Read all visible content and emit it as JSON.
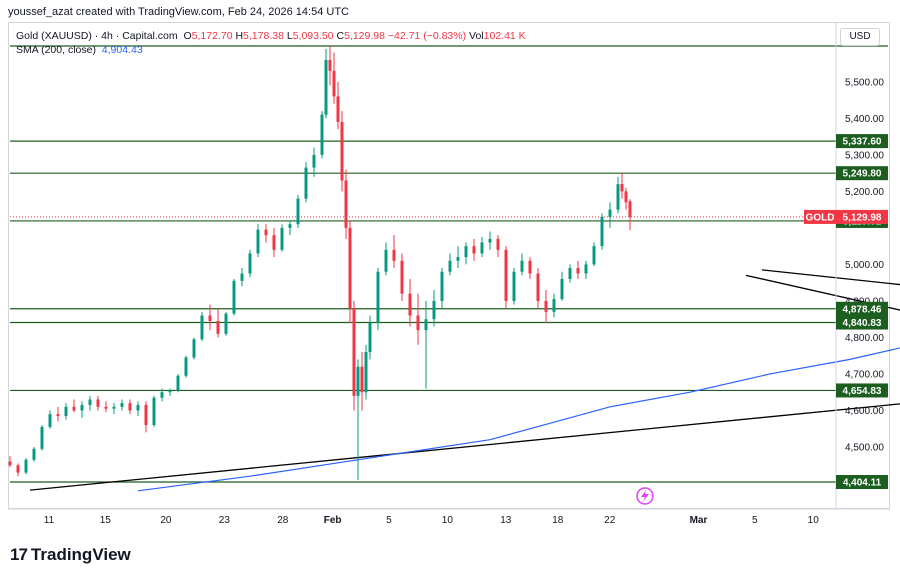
{
  "header": {
    "credit": "youssef_azat created with TradingView.com, Feb 24, 2026 14:54 UTC"
  },
  "legend": {
    "symbol": "Gold (XAUUSD) · 4h · Capital.com",
    "o_label": "O",
    "o_value": "5,172.70",
    "h_label": "H",
    "h_value": "5,178.38",
    "l_label": "L",
    "l_value": "5,093.50",
    "c_label": "C",
    "c_value": "5,129.98",
    "change": "−42.71 (−0.83%)",
    "vol_label": "Vol",
    "vol_value": "102.41 K",
    "sma_label": "SMA (200, close)",
    "sma_value": "4,904.43"
  },
  "currency_button": "USD",
  "brand": {
    "mark": "17",
    "name": "TradingView"
  },
  "colors": {
    "up": "#089981",
    "down": "#f23645",
    "sma": "#2962ff",
    "level": "#1b5e20",
    "trend": "#000000"
  },
  "chart_data": {
    "type": "candlestick",
    "y_axis": {
      "range": [
        4380,
        5600
      ],
      "ticks": [
        4500,
        4600,
        4700,
        4800,
        4900,
        5000,
        5200,
        5300,
        5400,
        5500
      ],
      "tick_labels": [
        "4,500.00",
        "4,600.00",
        "4,700.00",
        "4,800.00",
        "4,900.00",
        "5,000.00",
        "5,200.00",
        "5,300.00",
        "5,400.00",
        "5,500.00"
      ]
    },
    "x_axis": {
      "tick_labels": [
        "11",
        "15",
        "20",
        "23",
        "28",
        "Feb",
        "5",
        "10",
        "13",
        "18",
        "22",
        "Mar",
        "5",
        "10"
      ],
      "tick_positions": [
        0,
        26,
        54,
        81,
        108,
        131,
        157,
        184,
        211,
        235,
        259,
        300,
        326,
        353
      ]
    },
    "current_price": {
      "label": "GOLD",
      "value": 5129.98,
      "value_text": "5,129.98"
    },
    "levels": [
      {
        "value": 5337.6,
        "text": "5,337.60"
      },
      {
        "value": 5249.8,
        "text": "5,249.80"
      },
      {
        "value": 5119.01,
        "text": "5,119.01"
      },
      {
        "value": 4878.46,
        "text": "4,878.46"
      },
      {
        "value": 4840.83,
        "text": "4,840.83"
      },
      {
        "value": 4654.83,
        "text": "4,654.83"
      },
      {
        "value": 4404.11,
        "text": "4,404.11"
      }
    ],
    "top_level": 5598,
    "sma200": [
      [
        32,
        4380
      ],
      [
        60,
        4420
      ],
      [
        90,
        4470
      ],
      [
        120,
        4520
      ],
      [
        140,
        4580
      ],
      [
        150,
        4610
      ],
      [
        170,
        4650
      ],
      [
        190,
        4700
      ],
      [
        210,
        4740
      ],
      [
        230,
        4790
      ],
      [
        250,
        4850
      ],
      [
        270,
        4900
      ]
    ],
    "trendlines": [
      {
        "from": [
          5,
          4382
        ],
        "to": [
          367,
          4775
        ]
      },
      {
        "from": [
          188,
          4985
        ],
        "to": [
          261,
          4900
        ]
      },
      {
        "from": [
          184,
          4970
        ],
        "to": [
          261,
          4780
        ]
      }
    ],
    "candles": [
      [
        0,
        4460,
        4475,
        4445,
        4450
      ],
      [
        2,
        4450,
        4455,
        4420,
        4430
      ],
      [
        4,
        4430,
        4470,
        4425,
        4465
      ],
      [
        6,
        4465,
        4500,
        4460,
        4495
      ],
      [
        8,
        4495,
        4560,
        4490,
        4555
      ],
      [
        10,
        4555,
        4600,
        4550,
        4590
      ],
      [
        12,
        4590,
        4610,
        4570,
        4585
      ],
      [
        14,
        4585,
        4620,
        4575,
        4610
      ],
      [
        16,
        4610,
        4630,
        4595,
        4600
      ],
      [
        18,
        4600,
        4625,
        4580,
        4615
      ],
      [
        20,
        4615,
        4640,
        4600,
        4630
      ],
      [
        22,
        4630,
        4640,
        4600,
        4610
      ],
      [
        24,
        4610,
        4625,
        4595,
        4605
      ],
      [
        26,
        4605,
        4620,
        4590,
        4610
      ],
      [
        28,
        4610,
        4630,
        4600,
        4620
      ],
      [
        30,
        4620,
        4630,
        4590,
        4600
      ],
      [
        32,
        4600,
        4625,
        4585,
        4615
      ],
      [
        34,
        4615,
        4625,
        4540,
        4560
      ],
      [
        36,
        4560,
        4640,
        4555,
        4635
      ],
      [
        38,
        4635,
        4660,
        4625,
        4650
      ],
      [
        40,
        4650,
        4660,
        4640,
        4655
      ],
      [
        42,
        4655,
        4700,
        4650,
        4695
      ],
      [
        44,
        4695,
        4750,
        4690,
        4745
      ],
      [
        46,
        4745,
        4800,
        4740,
        4795
      ],
      [
        48,
        4795,
        4870,
        4790,
        4860
      ],
      [
        50,
        4860,
        4890,
        4820,
        4845
      ],
      [
        52,
        4845,
        4880,
        4800,
        4810
      ],
      [
        54,
        4810,
        4870,
        4805,
        4865
      ],
      [
        56,
        4865,
        4960,
        4860,
        4955
      ],
      [
        58,
        4955,
        4990,
        4940,
        4975
      ],
      [
        60,
        4975,
        5040,
        4965,
        5030
      ],
      [
        62,
        5030,
        5110,
        5020,
        5095
      ],
      [
        64,
        5095,
        5110,
        5060,
        5080
      ],
      [
        66,
        5080,
        5100,
        5020,
        5040
      ],
      [
        68,
        5040,
        5110,
        5035,
        5100
      ],
      [
        70,
        5100,
        5120,
        5080,
        5110
      ],
      [
        72,
        5110,
        5190,
        5100,
        5180
      ],
      [
        74,
        5180,
        5280,
        5170,
        5265
      ],
      [
        76,
        5265,
        5320,
        5240,
        5300
      ],
      [
        78,
        5300,
        5420,
        5290,
        5410
      ],
      [
        79,
        5410,
        5590,
        5400,
        5560
      ],
      [
        80,
        5560,
        5600,
        5490,
        5530
      ],
      [
        81,
        5530,
        5580,
        5440,
        5460
      ],
      [
        82,
        5460,
        5500,
        5370,
        5390
      ],
      [
        83,
        5390,
        5420,
        5200,
        5230
      ],
      [
        84,
        5230,
        5260,
        5070,
        5100
      ],
      [
        85,
        5100,
        5120,
        4840,
        4880
      ],
      [
        86,
        4880,
        4900,
        4600,
        4640
      ],
      [
        87,
        4640,
        4740,
        4410,
        4720
      ],
      [
        88,
        4720,
        4760,
        4600,
        4650
      ],
      [
        89,
        4650,
        4780,
        4630,
        4760
      ],
      [
        90,
        4760,
        4860,
        4740,
        4840
      ],
      [
        92,
        4840,
        4990,
        4820,
        4980
      ],
      [
        94,
        4980,
        5060,
        4970,
        5040
      ],
      [
        96,
        5040,
        5080,
        4990,
        5010
      ],
      [
        98,
        5010,
        5030,
        4900,
        4920
      ],
      [
        100,
        4920,
        4960,
        4830,
        4860
      ],
      [
        102,
        4860,
        4920,
        4780,
        4820
      ],
      [
        104,
        4820,
        4900,
        4660,
        4850
      ],
      [
        106,
        4850,
        4930,
        4830,
        4900
      ],
      [
        108,
        4900,
        4990,
        4880,
        4980
      ],
      [
        110,
        4980,
        5030,
        4970,
        5010
      ],
      [
        112,
        5010,
        5050,
        4990,
        5020
      ],
      [
        114,
        5020,
        5060,
        5000,
        5050
      ],
      [
        116,
        5050,
        5070,
        5010,
        5030
      ],
      [
        118,
        5030,
        5075,
        5020,
        5060
      ],
      [
        120,
        5060,
        5090,
        5040,
        5070
      ],
      [
        122,
        5070,
        5080,
        5020,
        5040
      ],
      [
        124,
        5040,
        5050,
        4880,
        4900
      ],
      [
        126,
        4900,
        4990,
        4890,
        4980
      ],
      [
        128,
        4980,
        5030,
        4970,
        5010
      ],
      [
        130,
        5010,
        5020,
        4960,
        4975
      ],
      [
        132,
        4975,
        4990,
        4880,
        4900
      ],
      [
        134,
        4900,
        4930,
        4840,
        4870
      ],
      [
        136,
        4870,
        4920,
        4855,
        4905
      ],
      [
        138,
        4905,
        4980,
        4900,
        4960
      ],
      [
        140,
        4960,
        5000,
        4950,
        4990
      ],
      [
        142,
        4990,
        5010,
        4960,
        4975
      ],
      [
        144,
        4975,
        5010,
        4960,
        5000
      ],
      [
        146,
        5000,
        5060,
        4995,
        5050
      ],
      [
        148,
        5050,
        5140,
        5040,
        5130
      ],
      [
        150,
        5130,
        5170,
        5100,
        5150
      ],
      [
        152,
        5150,
        5240,
        5140,
        5220
      ],
      [
        153,
        5220,
        5250,
        5180,
        5200
      ],
      [
        154,
        5200,
        5210,
        5150,
        5170
      ],
      [
        155,
        5172.7,
        5178.38,
        5093.5,
        5129.98
      ]
    ]
  }
}
